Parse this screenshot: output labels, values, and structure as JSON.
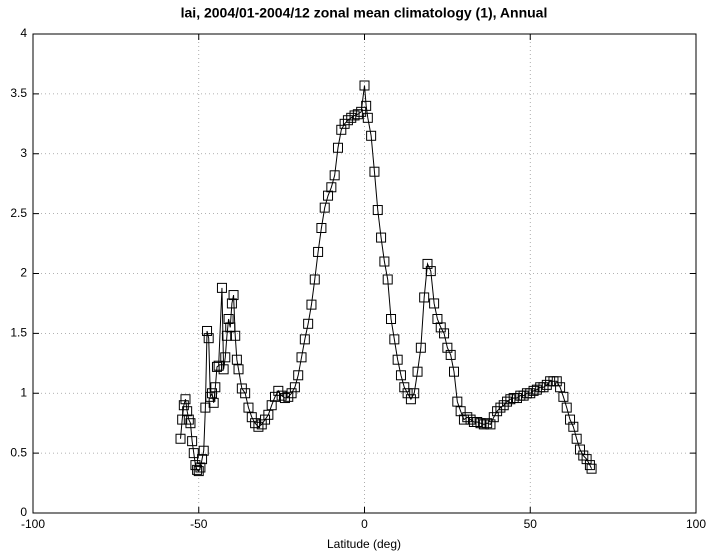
{
  "chart_data": {
    "type": "line",
    "title": "lai, 2004/01-2004/12 zonal mean climatology (1), Annual",
    "x_label": "Latitude (deg)",
    "x": [
      -55.5,
      -55,
      -54.5,
      -54,
      -53.5,
      -53,
      -52.5,
      -52,
      -51.5,
      -51,
      -50.5,
      -50,
      -49.5,
      -49,
      -48.5,
      -48,
      -47.5,
      -47,
      -46.5,
      -46,
      -45.5,
      -45,
      -44.5,
      -44,
      -43,
      -42.5,
      -42,
      -41.5,
      -41,
      -40.5,
      -40,
      -39.5,
      -39,
      -38.5,
      -38,
      -37,
      -36,
      -35,
      -34,
      -33,
      -32,
      -31,
      -30,
      -29,
      -28,
      -27,
      -26,
      -25,
      -24,
      -23,
      -22,
      -21,
      -20,
      -19,
      -18,
      -17,
      -16,
      -15,
      -14,
      -13,
      -12,
      -11,
      -10,
      -9,
      -8,
      -7,
      -6,
      -5,
      -4,
      -3,
      -2,
      -1,
      0,
      0.5,
      1,
      2,
      3,
      4,
      5,
      6,
      7,
      8,
      9,
      10,
      11,
      12,
      13,
      14,
      15,
      16,
      17,
      18,
      19,
      20,
      21,
      22,
      23,
      24,
      25,
      26,
      27,
      28,
      29,
      30,
      31,
      32,
      33,
      34,
      35,
      36,
      37,
      38,
      39,
      40,
      41,
      42,
      43,
      44,
      45,
      46,
      47,
      48,
      49,
      50,
      51,
      52,
      53,
      54,
      55,
      56,
      57,
      58,
      59,
      60,
      61,
      62,
      63,
      64,
      65,
      66,
      67,
      68,
      68.5
    ],
    "series": [
      {
        "color": "#000000",
        "values": [
          0.62,
          0.78,
          0.9,
          0.95,
          0.85,
          0.78,
          0.75,
          0.6,
          0.5,
          0.4,
          0.36,
          0.35,
          0.38,
          0.45,
          0.52,
          0.88,
          1.52,
          1.46,
          0.97,
          1.0,
          0.92,
          1.05,
          1.22,
          1.23,
          1.88,
          1.2,
          1.3,
          1.48,
          1.62,
          1.55,
          1.75,
          1.82,
          1.48,
          1.28,
          1.2,
          1.04,
          1.0,
          0.88,
          0.8,
          0.75,
          0.72,
          0.74,
          0.78,
          0.82,
          0.9,
          0.97,
          1.02,
          0.98,
          0.96,
          0.97,
          1.0,
          1.05,
          1.15,
          1.3,
          1.45,
          1.58,
          1.74,
          1.95,
          2.18,
          2.38,
          2.55,
          2.65,
          2.72,
          2.82,
          3.05,
          3.2,
          3.25,
          3.28,
          3.3,
          3.32,
          3.33,
          3.35,
          3.57,
          3.4,
          3.3,
          3.15,
          2.85,
          2.53,
          2.3,
          2.1,
          1.95,
          1.62,
          1.45,
          1.28,
          1.15,
          1.05,
          1.0,
          0.95,
          1.0,
          1.18,
          1.38,
          1.8,
          2.08,
          2.02,
          1.75,
          1.62,
          1.55,
          1.5,
          1.38,
          1.32,
          1.18,
          0.93,
          0.85,
          0.78,
          0.8,
          0.78,
          0.76,
          0.76,
          0.75,
          0.74,
          0.75,
          0.74,
          0.8,
          0.85,
          0.88,
          0.9,
          0.93,
          0.95,
          0.96,
          0.96,
          0.98,
          0.98,
          1.0,
          1.0,
          1.02,
          1.03,
          1.05,
          1.05,
          1.07,
          1.1,
          1.1,
          1.1,
          1.05,
          0.97,
          0.88,
          0.78,
          0.72,
          0.62,
          0.53,
          0.48,
          0.45,
          0.4,
          0.37
        ]
      }
    ],
    "xlim": [
      -100,
      100
    ],
    "xticks": [
      -100,
      -50,
      0,
      50,
      100
    ],
    "ylim": [
      0,
      4
    ],
    "yticks": [
      0,
      0.5,
      1,
      1.5,
      2,
      2.5,
      3,
      3.5,
      4
    ],
    "grid": true
  }
}
